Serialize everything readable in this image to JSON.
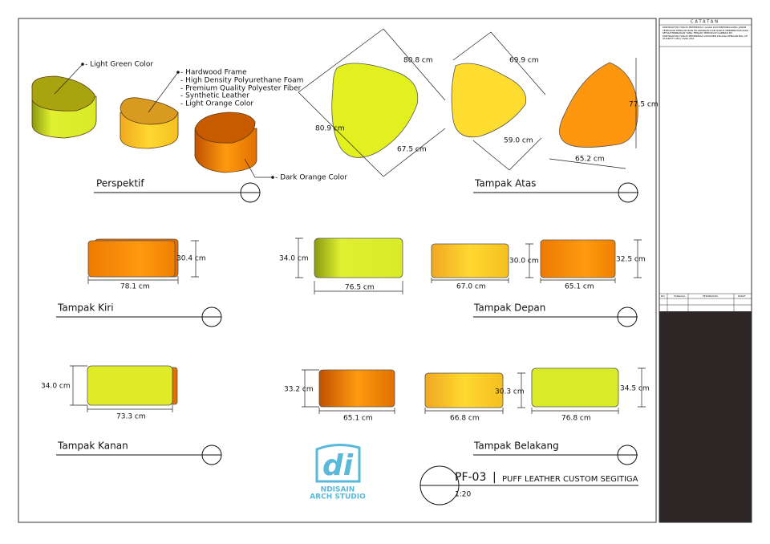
{
  "perspective": {
    "title": "Perspektif",
    "callouts": [
      "- Light Green Color",
      "- Hardwood Frame",
      "- High Density Polyurethane Foam",
      "- Premium Quality Polyester Fiber",
      "- Synthetic Leather",
      "- Light Orange Color",
      "- Dark Orange Color"
    ]
  },
  "top_view": {
    "title": "Tampak Atas",
    "dims": [
      "80.8 cm",
      "80.9 cm",
      "67.5 cm",
      "69.9 cm",
      "59.0 cm",
      "77.5 cm",
      "65.2 cm"
    ]
  },
  "left_view": {
    "title": "Tampak Kiri",
    "dims": [
      "30.4 cm",
      "78.1 cm"
    ]
  },
  "front_view": {
    "title": "Tampak Depan",
    "dims": [
      "34.0 cm",
      "76.5 cm",
      "30.0 cm",
      "67.0 cm",
      "32.5 cm",
      "65.1 cm"
    ]
  },
  "right_view": {
    "title": "Tampak Kanan",
    "dims": [
      "34.0 cm",
      "73.3 cm"
    ]
  },
  "back_view": {
    "title": "Tampak Belakang",
    "dims": [
      "33.2 cm",
      "65.1 cm",
      "30.3 cm",
      "66.8 cm",
      "34.5 cm",
      "76.8 cm"
    ]
  },
  "logo": {
    "mark": "di",
    "line1": "NDISAIN",
    "line2": "ARCH STUDIO"
  },
  "title_block": {
    "code": "PF-03",
    "separator": "|",
    "name": "PUFF LEATHER CUSTOM SEGITIGA",
    "scale": "1:20"
  },
  "side_panel": {
    "heading": "CATATAN",
    "notes": [
      "KONTRAKTOR HARUS MEMERIKSA ULANG DAN BERTANGGUNG JAWAB TERHADAP PENGUKURAN DILAPANGAN DAN HARUS MEMBERITAHUKAN SETIAP PERBAIKAN YANG TERJADI TERHADAP GAMBAR INI",
      "KONTRAKTOR HARUS MEMERIKSA DOKUMEN LELANG DENGAN BILL OF QUANTITY (BQ) YANG ADA"
    ],
    "revision_headers": [
      "NO.",
      "TANGGAL",
      "PERUBAHAN",
      "PARAF"
    ]
  }
}
